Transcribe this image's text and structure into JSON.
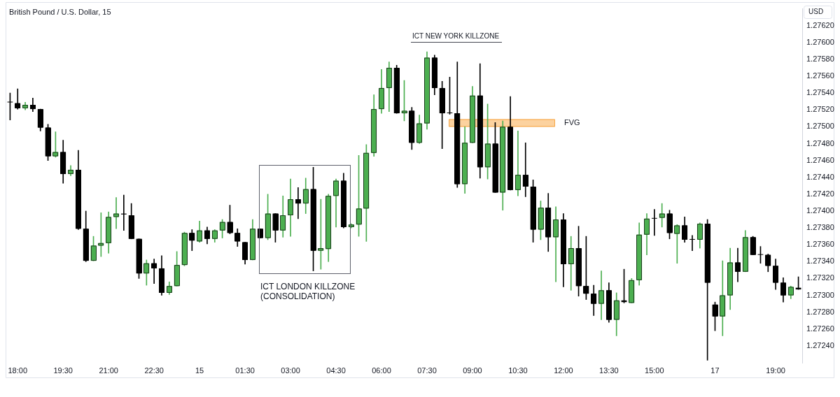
{
  "chart_data": {
    "type": "candlestick",
    "title": "British Pound / U.S. Dollar, 15",
    "ylabel": "USD",
    "annotations": [
      "ICT NEW YORK KILLZONE",
      "ICT LONDON KILLZONE\n(CONSOLIDATION)"
    ],
    "categories": [
      null,
      "18:00",
      null,
      null,
      null,
      null,
      null,
      "19:30",
      null,
      null,
      null,
      null,
      null,
      "21:00",
      null,
      null,
      null,
      null,
      null,
      "22:30",
      null,
      null,
      null,
      null,
      null,
      "15",
      null,
      null,
      null,
      null,
      null,
      "01:30",
      null,
      null,
      null,
      null,
      null,
      "03:00",
      null,
      null,
      null,
      null,
      null,
      "04:30",
      null,
      null,
      null,
      null,
      null,
      "06:00",
      null,
      null,
      null,
      null,
      null,
      "07:30",
      null,
      null,
      null,
      null,
      null,
      "09:00",
      null,
      null,
      null,
      null,
      null,
      "10:30",
      null,
      null,
      null,
      null,
      null,
      "12:00",
      null,
      null,
      null,
      null,
      null,
      "13:30",
      null,
      null,
      null,
      null,
      null,
      "15:00",
      null,
      null,
      null,
      null,
      null,
      null,
      null,
      "17",
      null,
      null,
      null,
      null,
      null,
      null,
      null,
      "19:00",
      null,
      null,
      null
    ],
    "ohlc": [
      [
        1.27529,
        1.2754,
        1.27508,
        1.27529
      ],
      [
        1.27528,
        1.27545,
        1.27521,
        1.27522
      ],
      [
        1.27522,
        1.27529,
        1.2752,
        1.27526
      ],
      [
        1.27526,
        1.27534,
        1.27518,
        1.27521
      ],
      [
        1.27521,
        1.27521,
        1.27495,
        1.27499
      ],
      [
        1.27499,
        1.27503,
        1.2746,
        1.27465
      ],
      [
        1.27465,
        1.27494,
        1.27464,
        1.2747
      ],
      [
        1.2747,
        1.27484,
        1.27433,
        1.27444
      ],
      [
        1.27444,
        1.27454,
        1.27442,
        1.27449
      ],
      [
        1.27449,
        1.27472,
        1.27378,
        1.27379
      ],
      [
        1.27379,
        1.274,
        1.2734,
        1.27341
      ],
      [
        1.27341,
        1.2737,
        1.27341,
        1.27359
      ],
      [
        1.27359,
        1.27398,
        1.27346,
        1.27362
      ],
      [
        1.27362,
        1.27399,
        1.2735,
        1.27393
      ],
      [
        1.27393,
        1.27416,
        1.27379,
        1.27397
      ],
      [
        1.27397,
        1.27419,
        1.27377,
        1.27396
      ],
      [
        1.27395,
        1.27409,
        1.27367,
        1.27367
      ],
      [
        1.27367,
        1.27367,
        1.2732,
        1.27326
      ],
      [
        1.27326,
        1.27342,
        1.27312,
        1.27338
      ],
      [
        1.27338,
        1.27343,
        1.27314,
        1.27332
      ],
      [
        1.27332,
        1.27347,
        1.273,
        1.27303
      ],
      [
        1.27303,
        1.27316,
        1.27301,
        1.27311
      ],
      [
        1.27311,
        1.27352,
        1.27311,
        1.27336
      ],
      [
        1.27336,
        1.27375,
        1.27335,
        1.27374
      ],
      [
        1.27374,
        1.27378,
        1.27353,
        1.27365
      ],
      [
        1.27364,
        1.27388,
        1.27363,
        1.27377
      ],
      [
        1.27377,
        1.27381,
        1.27361,
        1.27367
      ],
      [
        1.27367,
        1.27378,
        1.27363,
        1.27377
      ],
      [
        1.27377,
        1.2739,
        1.27368,
        1.27387
      ],
      [
        1.27387,
        1.27407,
        1.27373,
        1.27374
      ],
      [
        1.27374,
        1.27379,
        1.27358,
        1.27364
      ],
      [
        1.27363,
        1.27363,
        1.27337,
        1.27342
      ],
      [
        1.27342,
        1.2739,
        1.27342,
        1.27379
      ],
      [
        1.27379,
        1.27379,
        1.27368,
        1.27368
      ],
      [
        1.27368,
        1.2742,
        1.27366,
        1.27397
      ],
      [
        1.27397,
        1.27397,
        1.27363,
        1.27377
      ],
      [
        1.27377,
        1.27418,
        1.27369,
        1.27395
      ],
      [
        1.27395,
        1.27438,
        1.2737,
        1.27414
      ],
      [
        1.27414,
        1.27428,
        1.27391,
        1.27409
      ],
      [
        1.27409,
        1.27439,
        1.27397,
        1.27426
      ],
      [
        1.27426,
        1.27452,
        1.27329,
        1.27353
      ],
      [
        1.27353,
        1.27414,
        1.27331,
        1.27356
      ],
      [
        1.27355,
        1.2742,
        1.2734,
        1.27418
      ],
      [
        1.27418,
        1.27438,
        1.27381,
        1.27436
      ],
      [
        1.27436,
        1.27445,
        1.2738,
        1.27381
      ],
      [
        1.27381,
        1.27385,
        1.2738,
        1.27384
      ],
      [
        1.27384,
        1.27466,
        1.2737,
        1.27403
      ],
      [
        1.27403,
        1.27479,
        1.27364,
        1.27469
      ],
      [
        1.27469,
        1.27538,
        1.27465,
        1.27521
      ],
      [
        1.27521,
        1.27568,
        1.27516,
        1.27546
      ],
      [
        1.27546,
        1.27577,
        1.27518,
        1.2757
      ],
      [
        1.2757,
        1.27573,
        1.27516,
        1.27516
      ],
      [
        1.27516,
        1.27555,
        1.27507,
        1.27519
      ],
      [
        1.27519,
        1.27523,
        1.27473,
        1.27481
      ],
      [
        1.27481,
        1.27514,
        1.2748,
        1.27504
      ],
      [
        1.27504,
        1.27589,
        1.27497,
        1.27582
      ],
      [
        1.27582,
        1.27585,
        1.27538,
        1.27546
      ],
      [
        1.27546,
        1.27554,
        1.27474,
        1.27516
      ],
      [
        1.27516,
        1.27559,
        1.27515,
        1.27516
      ],
      [
        1.27516,
        1.27577,
        1.27428,
        1.27432
      ],
      [
        1.27432,
        1.275,
        1.27421,
        1.27481
      ],
      [
        1.27481,
        1.27548,
        1.27481,
        1.27537
      ],
      [
        1.27537,
        1.27575,
        1.27439,
        1.27452
      ],
      [
        1.27452,
        1.27527,
        1.27438,
        1.2748
      ],
      [
        1.2748,
        1.27505,
        1.27422,
        1.27422
      ],
      [
        1.27422,
        1.27507,
        1.27401,
        1.275
      ],
      [
        1.275,
        1.27536,
        1.27425,
        1.27425
      ],
      [
        1.27425,
        1.27495,
        1.27418,
        1.27443
      ],
      [
        1.27443,
        1.27481,
        1.27417,
        1.27429
      ],
      [
        1.27429,
        1.27437,
        1.27363,
        1.27378
      ],
      [
        1.27378,
        1.27412,
        1.27366,
        1.27404
      ],
      [
        1.27404,
        1.27421,
        1.27352,
        1.27369
      ],
      [
        1.27369,
        1.27405,
        1.27316,
        1.2739
      ],
      [
        1.2739,
        1.27397,
        1.2731,
        1.27337
      ],
      [
        1.27337,
        1.2737,
        1.27306,
        1.27356
      ],
      [
        1.27356,
        1.27382,
        1.27299,
        1.27311
      ],
      [
        1.27311,
        1.2737,
        1.27295,
        1.27302
      ],
      [
        1.27302,
        1.27312,
        1.27276,
        1.2729
      ],
      [
        1.2729,
        1.27329,
        1.27271,
        1.27306
      ],
      [
        1.27306,
        1.27315,
        1.27268,
        1.27271
      ],
      [
        1.27271,
        1.27303,
        1.27252,
        1.27294
      ],
      [
        1.27294,
        1.27331,
        1.27291,
        1.27292
      ],
      [
        1.27291,
        1.2732,
        1.27291,
        1.27318
      ],
      [
        1.27318,
        1.27386,
        1.27312,
        1.27372
      ],
      [
        1.27372,
        1.27397,
        1.27348,
        1.27391
      ],
      [
        1.27391,
        1.27402,
        1.27371,
        1.27391
      ],
      [
        1.27392,
        1.27409,
        1.27381,
        1.27397
      ],
      [
        1.27397,
        1.27401,
        1.27367,
        1.27374
      ],
      [
        1.27373,
        1.27384,
        1.27338,
        1.27383
      ],
      [
        1.27383,
        1.27393,
        1.27363,
        1.27366
      ],
      [
        1.27366,
        1.27371,
        1.27353,
        1.27366
      ],
      [
        1.27366,
        1.27386,
        1.27356,
        1.27385
      ],
      [
        1.27385,
        1.2739,
        1.27223,
        1.27315
      ],
      [
        1.27289,
        1.27292,
        1.27258,
        1.27275
      ],
      [
        1.27275,
        1.27341,
        1.27252,
        1.273
      ],
      [
        1.273,
        1.27356,
        1.27283,
        1.27339
      ],
      [
        1.27339,
        1.27356,
        1.27316,
        1.27328
      ],
      [
        1.27328,
        1.27377,
        1.27328,
        1.27369
      ],
      [
        1.27369,
        1.2737,
        1.27348,
        1.27348
      ],
      [
        1.27348,
        1.27358,
        1.27338,
        1.27348
      ],
      [
        1.27348,
        1.27349,
        1.27328,
        1.27335
      ],
      [
        1.27335,
        1.27343,
        1.27307,
        1.27315
      ],
      [
        1.27315,
        1.27321,
        1.27292,
        1.273
      ],
      [
        1.273,
        1.27311,
        1.27296,
        1.2731
      ],
      [
        1.27309,
        1.27322,
        1.27307,
        1.27307
      ]
    ],
    "colors": [
      "#000000",
      "#000000",
      "#4caf50",
      "#000000",
      "#000000",
      "#000000",
      "#4caf50",
      "#000000",
      "#4caf50",
      "#000000",
      "#000000",
      "#4caf50",
      "#4caf50",
      "#4caf50",
      "#4caf50",
      "#000000",
      "#000000",
      "#000000",
      "#4caf50",
      "#000000",
      "#000000",
      "#4caf50",
      "#4caf50",
      "#4caf50",
      "#000000",
      "#4caf50",
      "#000000",
      "#4caf50",
      "#4caf50",
      "#000000",
      "#000000",
      "#000000",
      "#4caf50",
      "#000000",
      "#4caf50",
      "#000000",
      "#4caf50",
      "#4caf50",
      "#000000",
      "#4caf50",
      "#000000",
      "#4caf50",
      "#4caf50",
      "#4caf50",
      "#000000",
      "#4caf50",
      "#4caf50",
      "#4caf50",
      "#4caf50",
      "#4caf50",
      "#4caf50",
      "#000000",
      "#4caf50",
      "#000000",
      "#4caf50",
      "#4caf50",
      "#000000",
      "#000000",
      "#000000",
      "#000000",
      "#4caf50",
      "#4caf50",
      "#000000",
      "#4caf50",
      "#000000",
      "#4caf50",
      "#000000",
      "#4caf50",
      "#000000",
      "#000000",
      "#4caf50",
      "#000000",
      "#4caf50",
      "#000000",
      "#4caf50",
      "#000000",
      "#000000",
      "#000000",
      "#4caf50",
      "#000000",
      "#4caf50",
      "#000000",
      "#4caf50",
      "#4caf50",
      "#4caf50",
      "#000000",
      "#4caf50",
      "#000000",
      "#4caf50",
      "#000000",
      "#000000",
      "#4caf50",
      "#000000",
      "#000000",
      "#4caf50",
      "#4caf50",
      "#000000",
      "#4caf50",
      "#000000",
      "#000000",
      "#000000",
      "#000000",
      "#000000",
      "#4caf50",
      "#000000"
    ],
    "ylim": [
      1.2722,
      1.2764
    ],
    "yticks": [
      {
        "value": 1.2724,
        "label": "1.27240"
      },
      {
        "value": 1.2726,
        "label": "1.27260"
      },
      {
        "value": 1.2728,
        "label": "1.27280"
      },
      {
        "value": 1.273,
        "label": "1.27300"
      },
      {
        "value": 1.2732,
        "label": "1.27320"
      },
      {
        "value": 1.2734,
        "label": "1.27340"
      },
      {
        "value": 1.2736,
        "label": "1.27360"
      },
      {
        "value": 1.2738,
        "label": "1.27380"
      },
      {
        "value": 1.274,
        "label": "1.27400"
      },
      {
        "value": 1.2742,
        "label": "1.27420"
      },
      {
        "value": 1.2744,
        "label": "1.27440"
      },
      {
        "value": 1.2746,
        "label": "1.27460"
      },
      {
        "value": 1.2748,
        "label": "1.27480"
      },
      {
        "value": 1.275,
        "label": "1.27500"
      },
      {
        "value": 1.2752,
        "label": "1.27520"
      },
      {
        "value": 1.2754,
        "label": "1.27540"
      },
      {
        "value": 1.2756,
        "label": "1.27560"
      },
      {
        "value": 1.2758,
        "label": "1.27580"
      },
      {
        "value": 1.276,
        "label": "1.27600"
      },
      {
        "value": 1.2762,
        "label": "1.27620"
      }
    ],
    "bands": [
      {
        "axis": "y",
        "from": 1.275,
        "to": 1.27509,
        "label": "FVG",
        "color": "#fcd29f"
      }
    ]
  }
}
